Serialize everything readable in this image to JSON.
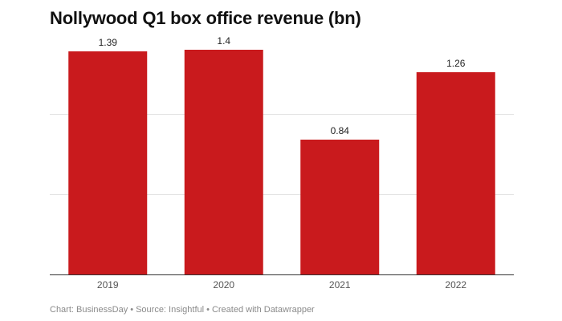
{
  "chart_data": {
    "type": "bar",
    "title": "Nollywood Q1 box office revenue (bn)",
    "categories": [
      "2019",
      "2020",
      "2021",
      "2022"
    ],
    "values": [
      1.39,
      1.4,
      0.84,
      1.26
    ],
    "value_labels": [
      "1.39",
      "1.4",
      "0.84",
      "1.26"
    ],
    "xlabel": "",
    "ylabel": "",
    "ylim": [
      0,
      1.5
    ],
    "gridlines": [
      0.5,
      1.0
    ],
    "grid": true,
    "legend": "none",
    "colors": {
      "bar": "#c91a1d",
      "grid": "#e3e3e3",
      "axis": "#333333",
      "tick_label": "#555555",
      "value_label": "#222222"
    }
  },
  "footer": {
    "chart_credit": "Chart: BusinessDay",
    "source": "Source: Insightful",
    "created_with": "Created with Datawrapper",
    "separator": "•"
  }
}
